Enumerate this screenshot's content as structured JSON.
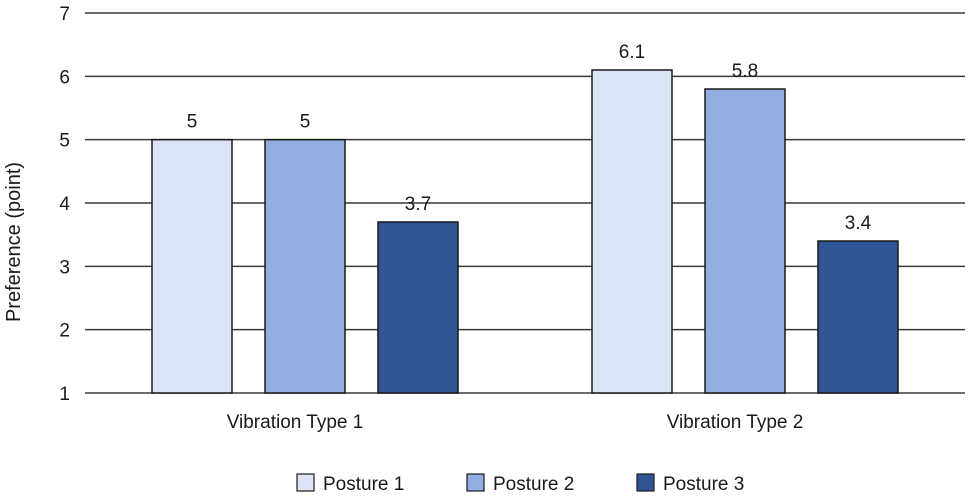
{
  "chart_data": {
    "type": "bar",
    "title": "",
    "xlabel": "",
    "ylabel": "Preference (point)",
    "ylim": [
      1,
      7
    ],
    "yticks": [
      1,
      2,
      3,
      4,
      5,
      6,
      7
    ],
    "grid": true,
    "legend_position": "bottom",
    "categories": [
      "Vibration Type 1",
      "Vibration Type 2"
    ],
    "series": [
      {
        "name": "Posture 1",
        "values": [
          5,
          6.1
        ],
        "labels": [
          "5",
          "6.1"
        ],
        "color": "#dbe4f4"
      },
      {
        "name": "Posture 2",
        "values": [
          5,
          5.8
        ],
        "labels": [
          "5",
          "5.8"
        ],
        "color": "#92ade0"
      },
      {
        "name": "Posture 3",
        "values": [
          3.7,
          3.4
        ],
        "labels": [
          "3.7",
          "3.4"
        ],
        "color": "#2f5596"
      }
    ]
  }
}
